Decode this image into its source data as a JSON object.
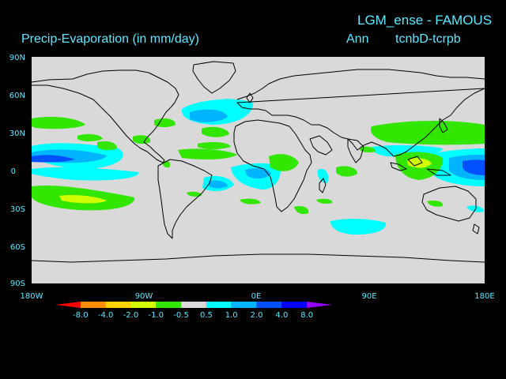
{
  "header": {
    "title": "LGM_ense - FAMOUS",
    "variable": "Precip-Evaporation (in mm/day)",
    "period": "Ann",
    "experiment": "tcnbD-tcrpb"
  },
  "axes": {
    "lat_labels": [
      "90N",
      "60N",
      "30N",
      "0",
      "30S",
      "60S",
      "90S"
    ],
    "lon_labels": [
      "180W",
      "90W",
      "0E",
      "90E",
      "180E"
    ]
  },
  "colorbar": {
    "labels": [
      "-8.0",
      "-4.0",
      "-2.0",
      "-1.0",
      "-0.5",
      "0.5",
      "1.0",
      "2.0",
      "4.0",
      "8.0"
    ],
    "colors": [
      "#ff0000",
      "#ff8c00",
      "#ffd200",
      "#d2ff00",
      "#32e600",
      "#d9d9d9",
      "#00ffff",
      "#00b4ff",
      "#0050ff",
      "#0000ff",
      "#9600ff"
    ]
  },
  "colors": {
    "background": "#000000",
    "ocean_land": "#d9d9d9",
    "text": "#5fe8ff",
    "coast": "#000000"
  }
}
